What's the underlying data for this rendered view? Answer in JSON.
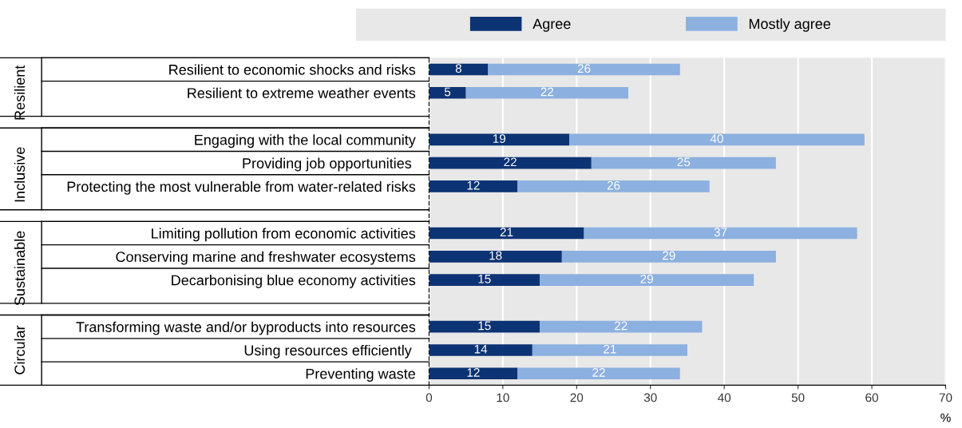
{
  "chart_data": {
    "type": "bar",
    "orientation": "horizontal",
    "stacked": true,
    "categories": [
      "Resilient to economic shocks and risks",
      "Resilient to extreme weather events",
      null,
      "Engaging with the local community",
      "Providing job opportunities ",
      "Protecting the most vulnerable from water-related risks",
      null,
      "Limiting pollution from economic activities",
      "Conserving marine and freshwater ecosystems",
      "Decarbonising blue economy activities",
      null,
      "Transforming waste and/or byproducts into resources",
      "Using resources efficiently ",
      "Preventing waste"
    ],
    "series": [
      {
        "name": "Agree",
        "color": "#0c3373",
        "values": [
          8,
          5,
          null,
          19,
          22,
          12,
          null,
          21,
          18,
          15,
          null,
          15,
          14,
          12
        ]
      },
      {
        "name": "Mostly agree",
        "color": "#8cb0df",
        "values": [
          26,
          22,
          null,
          40,
          25,
          26,
          null,
          37,
          29,
          29,
          null,
          22,
          21,
          22
        ]
      }
    ],
    "annotations": [
      "Resilient",
      "Inclusive",
      "Sustainable",
      "Circular"
    ],
    "xlabel": "%",
    "xlim": [
      0,
      70
    ],
    "xticks": [
      0,
      10,
      20,
      30,
      40,
      50,
      60,
      70
    ],
    "grid": "x",
    "legend": "top",
    "data_labels": true
  }
}
